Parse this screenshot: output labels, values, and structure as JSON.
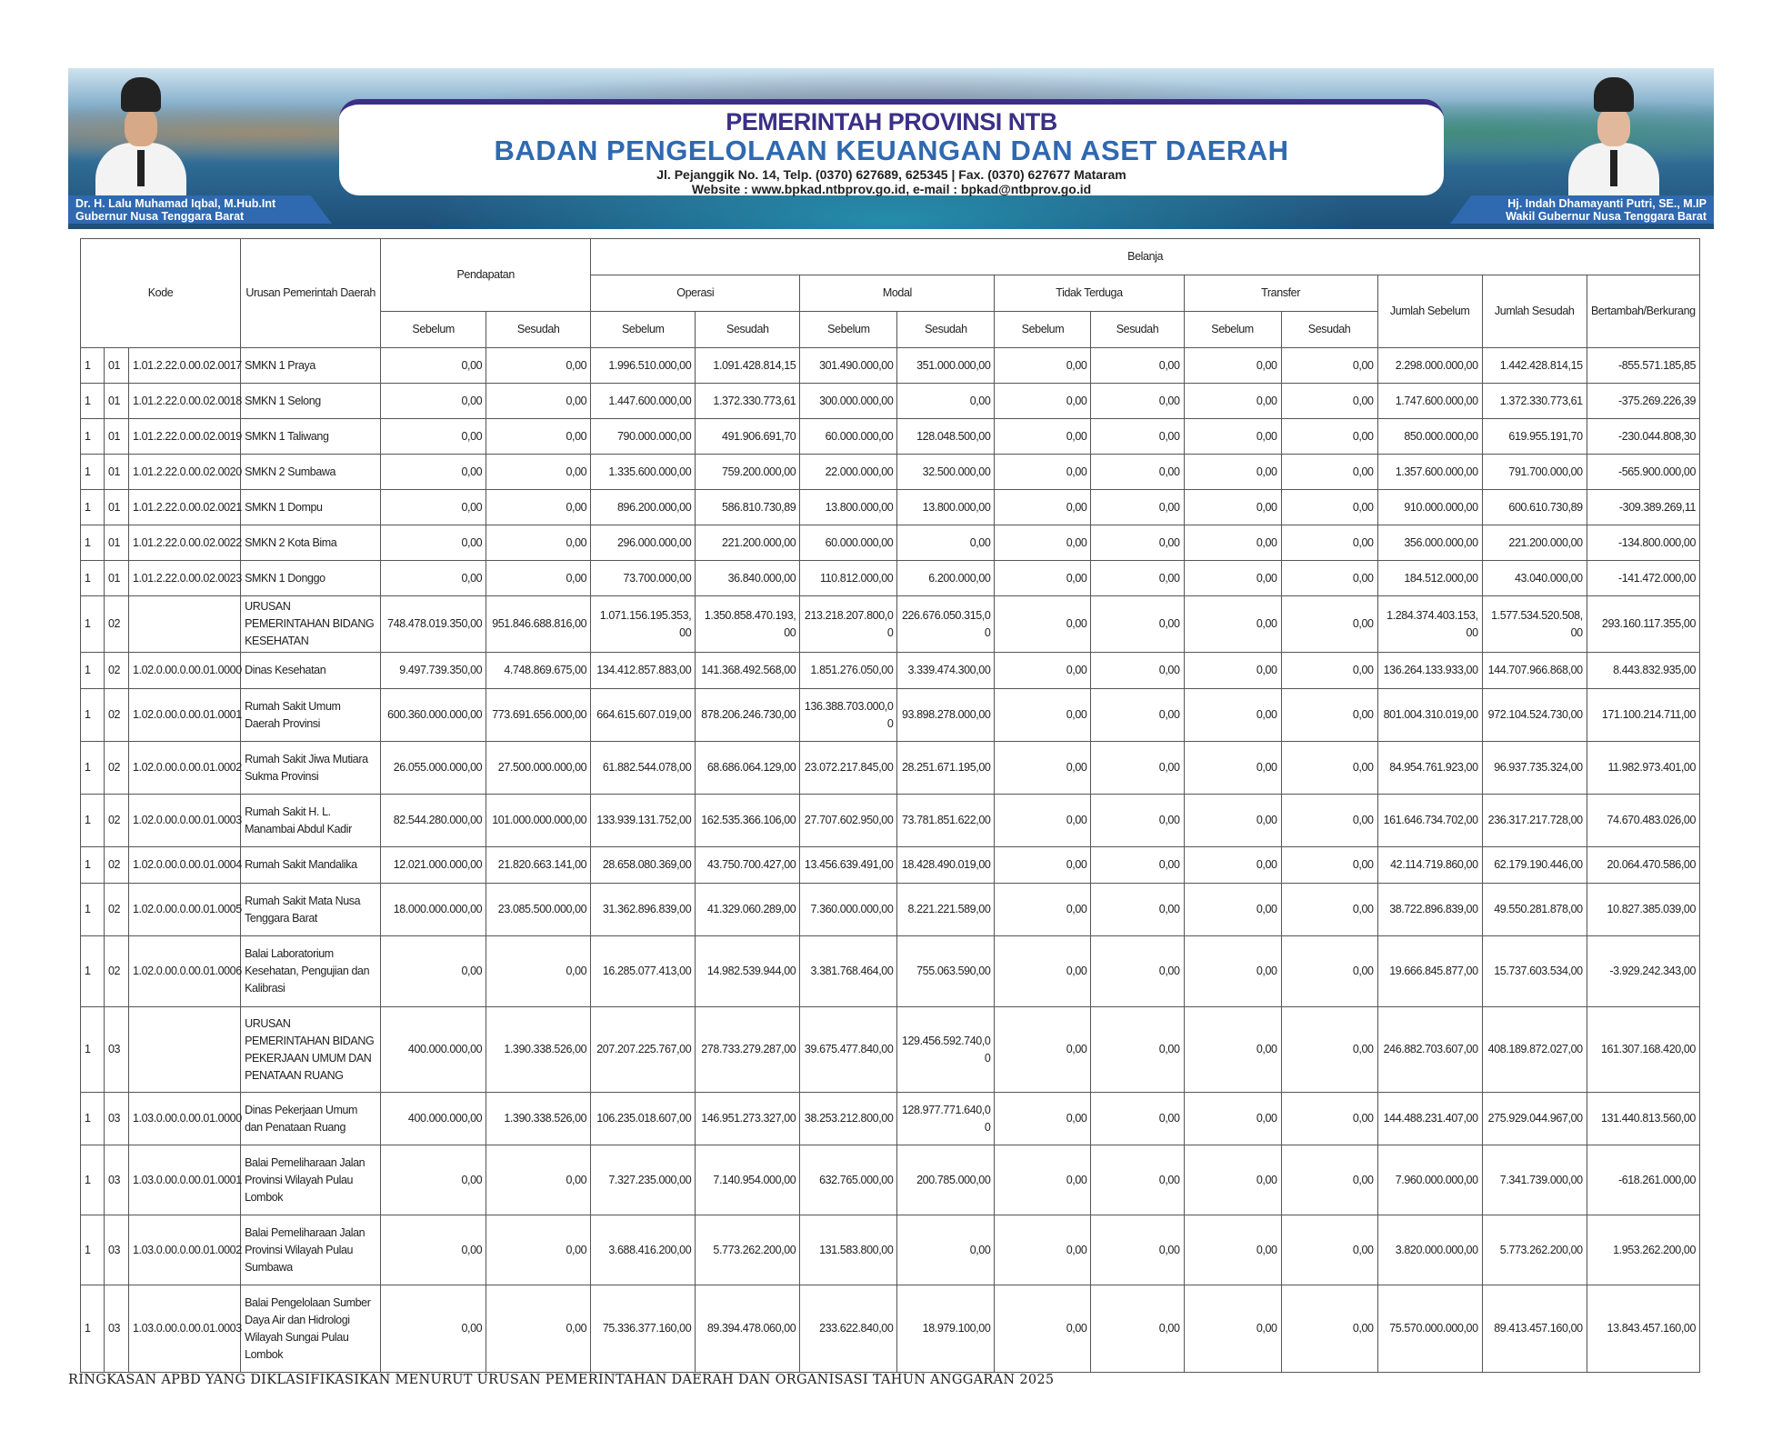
{
  "banner": {
    "line1": "PEMERINTAH PROVINSI NTB",
    "line2": "BADAN PENGELOLAAN KEUANGAN DAN ASET DAERAH",
    "address": "Jl. Pejanggik No. 14, Telp. (0370) 627689, 625345 | Fax. (0370) 627677 Mataram",
    "web": "Website : www.bpkad.ntbprov.go.id, e-mail : bpkad@ntbprov.go.id",
    "left_name": "Dr. H. Lalu Muhamad Iqbal, M.Hub.Int",
    "left_title": "Gubernur Nusa Tenggara Barat",
    "right_name": "Hj. Indah Dhamayanti Putri, SE., M.IP",
    "right_title": "Wakil Gubernur Nusa Tenggara Barat",
    "colors": {
      "navy": "#3b2f86",
      "blue": "#2f69b0"
    }
  },
  "table": {
    "headers": {
      "kode": "Kode",
      "urusan": "Urusan Pemerintah Daerah",
      "pendapatan": "Pendapatan",
      "belanja": "Belanja",
      "operasi": "Operasi",
      "modal": "Modal",
      "tidak_terduga": "Tidak Terduga",
      "transfer": "Transfer",
      "jumlah_sebelum": "Jumlah Sebelum",
      "jumlah_sesudah": "Jumlah Sesudah",
      "bertambah": "Bertambah/Berkurang",
      "sebelum": "Sebelum",
      "sesudah": "Sesudah"
    },
    "rows": [
      [
        "1",
        "01",
        "1.01.2.22.0.00.02.0017",
        "SMKN 1 Praya",
        "0,00",
        "0,00",
        "1.996.510.000,00",
        "1.091.428.814,15",
        "301.490.000,00",
        "351.000.000,00",
        "0,00",
        "0,00",
        "0,00",
        "0,00",
        "2.298.000.000,00",
        "1.442.428.814,15",
        "-855.571.185,85"
      ],
      [
        "1",
        "01",
        "1.01.2.22.0.00.02.0018",
        "SMKN 1 Selong",
        "0,00",
        "0,00",
        "1.447.600.000,00",
        "1.372.330.773,61",
        "300.000.000,00",
        "0,00",
        "0,00",
        "0,00",
        "0,00",
        "0,00",
        "1.747.600.000,00",
        "1.372.330.773,61",
        "-375.269.226,39"
      ],
      [
        "1",
        "01",
        "1.01.2.22.0.00.02.0019",
        "SMKN 1 Taliwang",
        "0,00",
        "0,00",
        "790.000.000,00",
        "491.906.691,70",
        "60.000.000,00",
        "128.048.500,00",
        "0,00",
        "0,00",
        "0,00",
        "0,00",
        "850.000.000,00",
        "619.955.191,70",
        "-230.044.808,30"
      ],
      [
        "1",
        "01",
        "1.01.2.22.0.00.02.0020",
        "SMKN 2 Sumbawa",
        "0,00",
        "0,00",
        "1.335.600.000,00",
        "759.200.000,00",
        "22.000.000,00",
        "32.500.000,00",
        "0,00",
        "0,00",
        "0,00",
        "0,00",
        "1.357.600.000,00",
        "791.700.000,00",
        "-565.900.000,00"
      ],
      [
        "1",
        "01",
        "1.01.2.22.0.00.02.0021",
        "SMKN 1 Dompu",
        "0,00",
        "0,00",
        "896.200.000,00",
        "586.810.730,89",
        "13.800.000,00",
        "13.800.000,00",
        "0,00",
        "0,00",
        "0,00",
        "0,00",
        "910.000.000,00",
        "600.610.730,89",
        "-309.389.269,11"
      ],
      [
        "1",
        "01",
        "1.01.2.22.0.00.02.0022",
        "SMKN 2 Kota Bima",
        "0,00",
        "0,00",
        "296.000.000,00",
        "221.200.000,00",
        "60.000.000,00",
        "0,00",
        "0,00",
        "0,00",
        "0,00",
        "0,00",
        "356.000.000,00",
        "221.200.000,00",
        "-134.800.000,00"
      ],
      [
        "1",
        "01",
        "1.01.2.22.0.00.02.0023",
        "SMKN 1 Donggo",
        "0,00",
        "0,00",
        "73.700.000,00",
        "36.840.000,00",
        "110.812.000,00",
        "6.200.000,00",
        "0,00",
        "0,00",
        "0,00",
        "0,00",
        "184.512.000,00",
        "43.040.000,00",
        "-141.472.000,00"
      ],
      [
        "1",
        "02",
        "",
        "URUSAN PEMERINTAHAN BIDANG KESEHATAN",
        "748.478.019.350,00",
        "951.846.688.816,00",
        "1.071.156.195.353,00",
        "1.350.858.470.193,00",
        "213.218.207.800,00",
        "226.676.050.315,00",
        "0,00",
        "0,00",
        "0,00",
        "0,00",
        "1.284.374.403.153,00",
        "1.577.534.520.508,00",
        "293.160.117.355,00"
      ],
      [
        "1",
        "02",
        "1.02.0.00.0.00.01.0000",
        "Dinas Kesehatan",
        "9.497.739.350,00",
        "4.748.869.675,00",
        "134.412.857.883,00",
        "141.368.492.568,00",
        "1.851.276.050,00",
        "3.339.474.300,00",
        "0,00",
        "0,00",
        "0,00",
        "0,00",
        "136.264.133.933,00",
        "144.707.966.868,00",
        "8.443.832.935,00"
      ],
      [
        "1",
        "02",
        "1.02.0.00.0.00.01.0001",
        "Rumah Sakit Umum Daerah Provinsi",
        "600.360.000.000,00",
        "773.691.656.000,00",
        "664.615.607.019,00",
        "878.206.246.730,00",
        "136.388.703.000,00",
        "93.898.278.000,00",
        "0,00",
        "0,00",
        "0,00",
        "0,00",
        "801.004.310.019,00",
        "972.104.524.730,00",
        "171.100.214.711,00"
      ],
      [
        "1",
        "02",
        "1.02.0.00.0.00.01.0002",
        "Rumah Sakit Jiwa Mutiara Sukma Provinsi",
        "26.055.000.000,00",
        "27.500.000.000,00",
        "61.882.544.078,00",
        "68.686.064.129,00",
        "23.072.217.845,00",
        "28.251.671.195,00",
        "0,00",
        "0,00",
        "0,00",
        "0,00",
        "84.954.761.923,00",
        "96.937.735.324,00",
        "11.982.973.401,00"
      ],
      [
        "1",
        "02",
        "1.02.0.00.0.00.01.0003",
        "Rumah Sakit H. L. Manambai Abdul Kadir",
        "82.544.280.000,00",
        "101.000.000.000,00",
        "133.939.131.752,00",
        "162.535.366.106,00",
        "27.707.602.950,00",
        "73.781.851.622,00",
        "0,00",
        "0,00",
        "0,00",
        "0,00",
        "161.646.734.702,00",
        "236.317.217.728,00",
        "74.670.483.026,00"
      ],
      [
        "1",
        "02",
        "1.02.0.00.0.00.01.0004",
        "Rumah Sakit Mandalika",
        "12.021.000.000,00",
        "21.820.663.141,00",
        "28.658.080.369,00",
        "43.750.700.427,00",
        "13.456.639.491,00",
        "18.428.490.019,00",
        "0,00",
        "0,00",
        "0,00",
        "0,00",
        "42.114.719.860,00",
        "62.179.190.446,00",
        "20.064.470.586,00"
      ],
      [
        "1",
        "02",
        "1.02.0.00.0.00.01.0005",
        "Rumah Sakit Mata Nusa Tenggara Barat",
        "18.000.000.000,00",
        "23.085.500.000,00",
        "31.362.896.839,00",
        "41.329.060.289,00",
        "7.360.000.000,00",
        "8.221.221.589,00",
        "0,00",
        "0,00",
        "0,00",
        "0,00",
        "38.722.896.839,00",
        "49.550.281.878,00",
        "10.827.385.039,00"
      ],
      [
        "1",
        "02",
        "1.02.0.00.0.00.01.0006",
        "Balai Laboratorium Kesehatan, Pengujian dan Kalibrasi",
        "0,00",
        "0,00",
        "16.285.077.413,00",
        "14.982.539.944,00",
        "3.381.768.464,00",
        "755.063.590,00",
        "0,00",
        "0,00",
        "0,00",
        "0,00",
        "19.666.845.877,00",
        "15.737.603.534,00",
        "-3.929.242.343,00"
      ],
      [
        "1",
        "03",
        "",
        "URUSAN PEMERINTAHAN BIDANG PEKERJAAN UMUM DAN PENATAAN RUANG",
        "400.000.000,00",
        "1.390.338.526,00",
        "207.207.225.767,00",
        "278.733.279.287,00",
        "39.675.477.840,00",
        "129.456.592.740,00",
        "0,00",
        "0,00",
        "0,00",
        "0,00",
        "246.882.703.607,00",
        "408.189.872.027,00",
        "161.307.168.420,00"
      ],
      [
        "1",
        "03",
        "1.03.0.00.0.00.01.0000",
        "Dinas Pekerjaan Umum dan Penataan Ruang",
        "400.000.000,00",
        "1.390.338.526,00",
        "106.235.018.607,00",
        "146.951.273.327,00",
        "38.253.212.800,00",
        "128.977.771.640,00",
        "0,00",
        "0,00",
        "0,00",
        "0,00",
        "144.488.231.407,00",
        "275.929.044.967,00",
        "131.440.813.560,00"
      ],
      [
        "1",
        "03",
        "1.03.0.00.0.00.01.0001",
        "Balai Pemeliharaan Jalan Provinsi Wilayah Pulau Lombok",
        "0,00",
        "0,00",
        "7.327.235.000,00",
        "7.140.954.000,00",
        "632.765.000,00",
        "200.785.000,00",
        "0,00",
        "0,00",
        "0,00",
        "0,00",
        "7.960.000.000,00",
        "7.341.739.000,00",
        "-618.261.000,00"
      ],
      [
        "1",
        "03",
        "1.03.0.00.0.00.01.0002",
        "Balai Pemeliharaan Jalan Provinsi Wilayah Pulau Sumbawa",
        "0,00",
        "0,00",
        "3.688.416.200,00",
        "5.773.262.200,00",
        "131.583.800,00",
        "0,00",
        "0,00",
        "0,00",
        "0,00",
        "0,00",
        "3.820.000.000,00",
        "5.773.262.200,00",
        "1.953.262.200,00"
      ],
      [
        "1",
        "03",
        "1.03.0.00.0.00.01.0003",
        "Balai Pengelolaan Sumber Daya Air dan Hidrologi Wilayah Sungai Pulau Lombok",
        "0,00",
        "0,00",
        "75.336.377.160,00",
        "89.394.478.060,00",
        "233.622.840,00",
        "18.979.100,00",
        "0,00",
        "0,00",
        "0,00",
        "0,00",
        "75.570.000.000,00",
        "89.413.457.160,00",
        "13.843.457.160,00"
      ]
    ]
  },
  "caption": "RINGKASAN APBD YANG DIKLASIFIKASIKAN MENURUT URUSAN PEMERINTAHAN DAERAH DAN ORGANISASI TAHUN ANGGARAN 2025"
}
